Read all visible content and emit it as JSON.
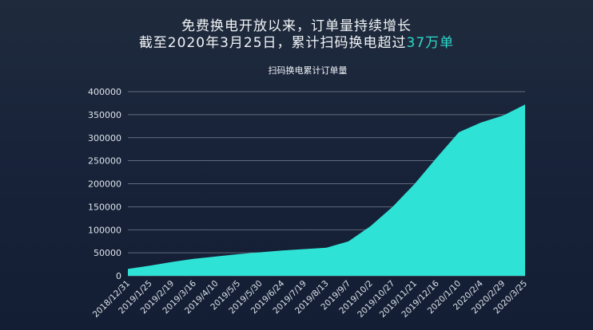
{
  "headline": {
    "line1": "免费换电开放以来，订单量持续增长",
    "line2_prefix": "截至2020年3月25日，累计扫码换电超过",
    "line2_highlight": "37万单"
  },
  "colors": {
    "area_fill": "#2ee3d6",
    "accent_text": "#2fd8c8",
    "grid": "#c9d2dc"
  },
  "chart_data": {
    "type": "area",
    "title": "扫码换电累计订单量",
    "xlabel": "",
    "ylabel": "",
    "ylim": [
      0,
      400000
    ],
    "yticks": [
      0,
      50000,
      100000,
      150000,
      200000,
      250000,
      300000,
      350000,
      400000
    ],
    "grid": true,
    "x": [
      "2018/12/31",
      "2019/1/25",
      "2019/2/19",
      "2019/3/16",
      "2019/4/10",
      "2019/5/5",
      "2019/5/30",
      "2019/6/24",
      "2019/7/19",
      "2019/8/13",
      "2019/9/7",
      "2019/10/2",
      "2019/10/27",
      "2019/11/21",
      "2019/12/16",
      "2020/1/10",
      "2020/2/4",
      "2020/2/29",
      "2020/3/25"
    ],
    "values": [
      15000,
      22000,
      30000,
      37000,
      42000,
      47000,
      51000,
      55000,
      58000,
      61000,
      75000,
      108000,
      150000,
      200000,
      257000,
      312000,
      333000,
      348000,
      372000
    ]
  }
}
